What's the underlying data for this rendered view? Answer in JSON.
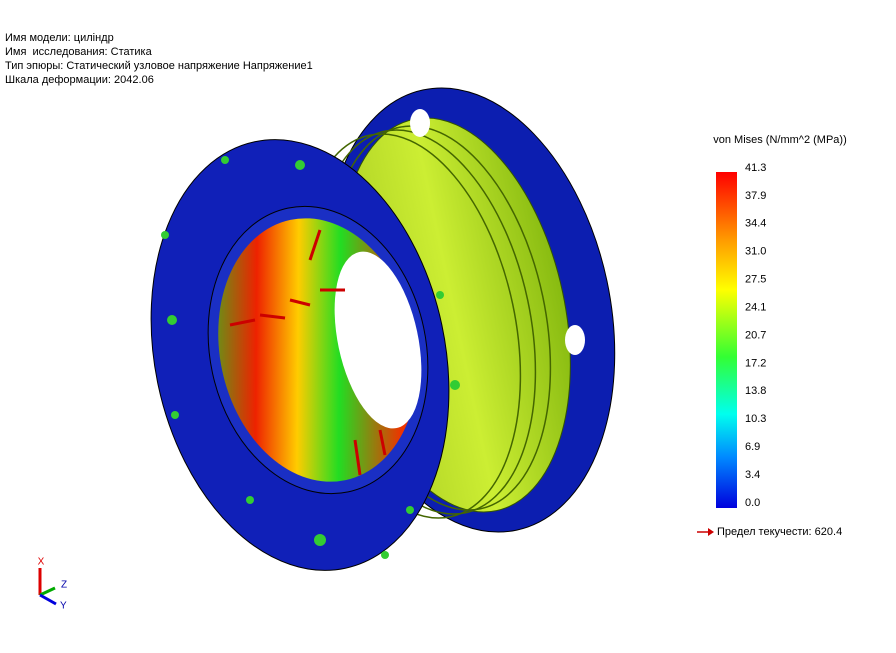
{
  "info": [
    "Имя модели: цилiндр",
    "Имя  исследования: Статика",
    "Тип эпюры: Статический узловое напряжение Напряжение1",
    "Шкала деформации: 2042.06"
  ],
  "legend": {
    "title": "von Mises (N/mm^2 (MPa))",
    "labels": [
      "41.3",
      "37.9",
      "34.4",
      "31.0",
      "27.5",
      "24.1",
      "20.7",
      "17.2",
      "13.8",
      "10.3",
      "6.9",
      "3.4",
      "0.0"
    ],
    "yield": "Предел текучести: 620.4"
  },
  "triad": {
    "x": "X",
    "y": "Y",
    "z": "Z"
  }
}
